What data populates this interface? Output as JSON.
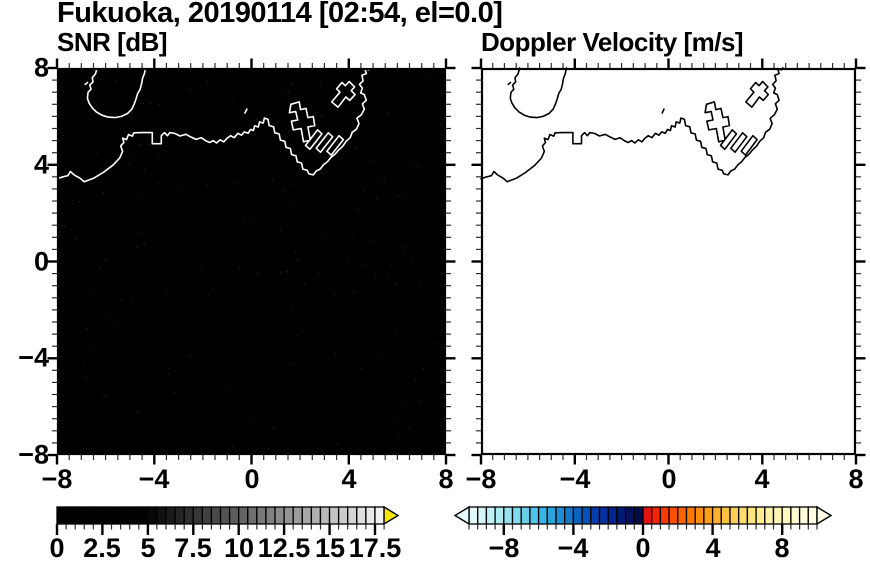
{
  "header": {
    "title": "Fukuoka, 20190114 [02:54, el=0.0]"
  },
  "panels": [
    {
      "key": "snr",
      "subtitle": "SNR [dB]",
      "background": "#000000",
      "coast_color": "#ffffff",
      "show_y_labels": true,
      "speckle_noise": true
    },
    {
      "key": "doppler",
      "subtitle": "Doppler Velocity [m/s]",
      "background": "#ffffff",
      "coast_color": "#000000",
      "show_y_labels": false,
      "speckle_noise": false
    }
  ],
  "axes": {
    "xlim": [
      -8,
      8
    ],
    "ylim": [
      -8,
      8
    ],
    "x_tick_values": [
      -8,
      -4,
      0,
      4,
      8
    ],
    "x_tick_labels": [
      "−8",
      "−4",
      "0",
      "4",
      "8"
    ],
    "y_tick_values": [
      8,
      4,
      0,
      -4,
      -8
    ],
    "y_tick_labels": [
      "8",
      "4",
      "0",
      "−4",
      "−8"
    ],
    "minor_step": 0.5,
    "major_step": 4
  },
  "chart_data": [
    {
      "type": "heatmap",
      "panel": "snr",
      "title": "SNR [dB]",
      "xlim": [
        -8,
        8
      ],
      "ylim": [
        -8,
        8
      ],
      "x_ticks": [
        -8,
        -4,
        0,
        4,
        8
      ],
      "y_ticks": [
        8,
        4,
        0,
        -4,
        -8
      ],
      "minor_tick_step": 0.5,
      "field_summary": "uniform low SNR (~0 dB, below the 5 dB gray threshold) rendered solid black with sparse faint speckle noise; Hakata Bay coastline overlaid in white",
      "colorbar": {
        "min": 0,
        "max": 18,
        "cell_step": 0.5,
        "tick_values": [
          0,
          2.5,
          5,
          7.5,
          10,
          12.5,
          15,
          17.5
        ],
        "tick_labels": [
          "0",
          "2.5",
          "5",
          "7.5",
          "10",
          "12.5",
          "15",
          "17.5"
        ],
        "minor_tick_step": 0.5,
        "over_arrow_color": "#f2e800",
        "under_arrow_color": null,
        "colors": [
          "#000000",
          "#000000",
          "#000000",
          "#000000",
          "#000000",
          "#000000",
          "#000000",
          "#000000",
          "#000000",
          "#000000",
          "#080808",
          "#111111",
          "#1b1b1b",
          "#242424",
          "#2d2d2d",
          "#373737",
          "#404040",
          "#494949",
          "#535353",
          "#5c5c5c",
          "#656565",
          "#6f6f6f",
          "#787878",
          "#818181",
          "#8b8b8b",
          "#949494",
          "#9d9d9d",
          "#a7a7a7",
          "#b0b0b0",
          "#b9b9b9",
          "#c3c3c3",
          "#cccccc",
          "#d5d5d5",
          "#dfdfdf",
          "#e8e8e8",
          "#f1f1f1"
        ]
      }
    },
    {
      "type": "heatmap",
      "panel": "doppler",
      "title": "Doppler Velocity [m/s]",
      "xlim": [
        -8,
        8
      ],
      "ylim": [
        -8,
        8
      ],
      "x_ticks": [
        -8,
        -4,
        0,
        4,
        8
      ],
      "y_ticks": [
        8,
        4,
        0,
        -4,
        -8
      ],
      "minor_tick_step": 0.5,
      "field_summary": "no Doppler velocity echoes displayed (blank white field); Hakata Bay coastline overlaid in black",
      "colorbar": {
        "min": -10,
        "max": 10,
        "cell_step": 0.5,
        "tick_values": [
          -8,
          -4,
          0,
          4,
          8
        ],
        "tick_labels": [
          "−8",
          "−4",
          "0",
          "4",
          "8"
        ],
        "minor_tick_step": 0.5,
        "under_arrow_color": "#e6fbfb",
        "over_arrow_color": "#fffde8",
        "colors": [
          "#e2fafa",
          "#d2f5f7",
          "#c0f0f5",
          "#aceaf2",
          "#96e2f0",
          "#7fd9ed",
          "#68cfea",
          "#50c3e7",
          "#3ab5e3",
          "#2aa4dd",
          "#1c90d6",
          "#1279cd",
          "#0a62c3",
          "#0650b8",
          "#043eac",
          "#03309e",
          "#02238c",
          "#021a76",
          "#02125e",
          "#020c46",
          "#e21212",
          "#f22408",
          "#fb3a00",
          "#ff5000",
          "#ff6400",
          "#ff7800",
          "#ff8c0a",
          "#ff9e1c",
          "#ffb030",
          "#ffc046",
          "#ffcf5a",
          "#ffdc6e",
          "#ffe581",
          "#ffec93",
          "#fff2a4",
          "#fff6b3",
          "#fff9c2",
          "#fffbce",
          "#fffcd9",
          "#fffde2"
        ]
      }
    }
  ],
  "coastline": {
    "main": [
      [
        -8,
        3.42
      ],
      [
        -7.75,
        3.5
      ],
      [
        -7.55,
        3.55
      ],
      [
        -7.45,
        3.72
      ],
      [
        -7.28,
        3.57
      ],
      [
        -7.08,
        3.46
      ],
      [
        -6.88,
        3.3
      ],
      [
        -6.5,
        3.44
      ],
      [
        -6.1,
        3.68
      ],
      [
        -5.7,
        3.98
      ],
      [
        -5.42,
        4.28
      ],
      [
        -5.3,
        4.55
      ],
      [
        -5.38,
        4.78
      ],
      [
        -5.25,
        4.92
      ],
      [
        -5.3,
        5.1
      ],
      [
        -5.14,
        5.04
      ],
      [
        -5.06,
        5.25
      ],
      [
        -4.9,
        5.18
      ],
      [
        -4.84,
        5.32
      ],
      [
        -4.5,
        5.33
      ],
      [
        -4.08,
        5.33
      ],
      [
        -4.08,
        4.87
      ],
      [
        -3.71,
        4.87
      ],
      [
        -3.71,
        5.2
      ],
      [
        -3.58,
        5.33
      ],
      [
        -3.46,
        5.2
      ],
      [
        -3.36,
        5.33
      ],
      [
        -3.15,
        5.29
      ],
      [
        -2.94,
        5.19
      ],
      [
        -2.7,
        5.26
      ],
      [
        -2.5,
        5.15
      ],
      [
        -2.28,
        5.05
      ],
      [
        -2.07,
        5.12
      ],
      [
        -1.89,
        5.0
      ],
      [
        -1.72,
        4.92
      ],
      [
        -1.57,
        5.0
      ],
      [
        -1.44,
        4.9
      ],
      [
        -1.29,
        5.03
      ],
      [
        -1.14,
        4.95
      ],
      [
        -1.0,
        5.1
      ],
      [
        -0.86,
        5.2
      ],
      [
        -0.71,
        5.12
      ],
      [
        -0.56,
        5.3
      ],
      [
        -0.41,
        5.22
      ],
      [
        -0.29,
        5.36
      ],
      [
        -0.14,
        5.3
      ],
      [
        -0.04,
        5.46
      ],
      [
        0.08,
        5.41
      ],
      [
        0.13,
        5.61
      ],
      [
        0.28,
        5.56
      ],
      [
        0.33,
        5.77
      ],
      [
        0.48,
        5.72
      ],
      [
        0.53,
        5.93
      ],
      [
        0.68,
        5.88
      ],
      [
        0.73,
        5.62
      ],
      [
        0.91,
        5.57
      ],
      [
        0.96,
        5.32
      ],
      [
        1.14,
        5.27
      ],
      [
        1.19,
        5.02
      ],
      [
        1.37,
        4.97
      ],
      [
        1.42,
        4.72
      ],
      [
        1.6,
        4.67
      ],
      [
        1.65,
        4.42
      ],
      [
        1.83,
        4.37
      ],
      [
        1.88,
        4.12
      ],
      [
        2.06,
        4.07
      ],
      [
        2.11,
        3.82
      ],
      [
        2.29,
        3.77
      ],
      [
        2.36,
        3.62
      ],
      [
        2.54,
        3.58
      ],
      [
        2.66,
        3.74
      ],
      [
        2.82,
        3.82
      ],
      [
        2.96,
        4.0
      ],
      [
        3.12,
        4.12
      ],
      [
        3.26,
        4.3
      ],
      [
        3.44,
        4.44
      ],
      [
        3.59,
        4.62
      ],
      [
        3.76,
        4.77
      ],
      [
        3.89,
        4.97
      ],
      [
        4.06,
        5.12
      ],
      [
        4.14,
        5.34
      ],
      [
        4.32,
        5.47
      ],
      [
        4.42,
        5.7
      ],
      [
        4.34,
        5.92
      ],
      [
        4.52,
        6.07
      ],
      [
        4.64,
        6.3
      ],
      [
        4.56,
        6.52
      ],
      [
        4.72,
        6.67
      ],
      [
        4.64,
        6.9
      ],
      [
        4.49,
        6.97
      ],
      [
        4.56,
        7.17
      ],
      [
        4.44,
        7.32
      ],
      [
        4.59,
        7.47
      ],
      [
        4.54,
        7.7
      ],
      [
        4.72,
        7.77
      ],
      [
        4.66,
        7.97
      ],
      [
        4.82,
        7.92
      ],
      [
        4.88,
        8.0
      ]
    ],
    "island": [
      [
        -6.35,
        8
      ],
      [
        -6.42,
        7.75
      ],
      [
        -6.55,
        7.6
      ],
      [
        -6.52,
        7.42
      ],
      [
        -6.65,
        7.3
      ],
      [
        -6.6,
        7.12
      ],
      [
        -6.72,
        7.0
      ],
      [
        -6.75,
        6.75
      ],
      [
        -6.68,
        6.55
      ],
      [
        -6.55,
        6.35
      ],
      [
        -6.38,
        6.18
      ],
      [
        -6.15,
        6.05
      ],
      [
        -5.9,
        5.97
      ],
      [
        -5.62,
        5.95
      ],
      [
        -5.35,
        6.0
      ],
      [
        -5.1,
        6.12
      ],
      [
        -4.92,
        6.3
      ],
      [
        -4.82,
        6.52
      ],
      [
        -4.75,
        6.72
      ],
      [
        -4.68,
        6.95
      ],
      [
        -4.58,
        7.12
      ],
      [
        -4.52,
        7.35
      ],
      [
        -4.48,
        7.58
      ],
      [
        -4.4,
        7.78
      ],
      [
        -4.36,
        8
      ]
    ],
    "islet": [
      [
        -6.84,
        7.32
      ],
      [
        -6.74,
        7.4
      ]
    ],
    "small_mark": [
      [
        -0.27,
        6.14
      ],
      [
        -0.19,
        6.3
      ]
    ],
    "piers": [
      [
        [
          1.62,
          6.5
        ],
        [
          1.96,
          6.6
        ],
        [
          2.02,
          6.28
        ],
        [
          2.24,
          6.33
        ],
        [
          2.32,
          5.95
        ],
        [
          2.54,
          5.99
        ],
        [
          2.6,
          5.62
        ],
        [
          2.32,
          5.56
        ],
        [
          2.42,
          5.02
        ],
        [
          2.14,
          4.95
        ],
        [
          2.04,
          5.5
        ],
        [
          1.72,
          5.44
        ],
        [
          1.64,
          5.8
        ],
        [
          1.9,
          5.85
        ],
        [
          1.82,
          6.2
        ],
        [
          1.56,
          6.15
        ]
      ],
      [
        [
          2.4,
          4.64
        ],
        [
          2.22,
          4.8
        ],
        [
          2.72,
          5.44
        ],
        [
          2.9,
          5.28
        ]
      ],
      [
        [
          2.84,
          4.52
        ],
        [
          2.66,
          4.68
        ],
        [
          3.16,
          5.32
        ],
        [
          3.34,
          5.16
        ]
      ],
      [
        [
          3.28,
          4.4
        ],
        [
          3.1,
          4.56
        ],
        [
          3.6,
          5.2
        ],
        [
          3.78,
          5.04
        ]
      ],
      [
        [
          3.3,
          6.6
        ],
        [
          3.64,
          7.0
        ],
        [
          3.5,
          7.14
        ],
        [
          3.72,
          7.4
        ],
        [
          3.86,
          7.27
        ],
        [
          4.02,
          7.44
        ],
        [
          4.24,
          7.22
        ],
        [
          4.1,
          7.06
        ],
        [
          4.26,
          6.9
        ],
        [
          4.04,
          6.66
        ],
        [
          3.88,
          6.8
        ],
        [
          3.56,
          6.38
        ]
      ]
    ]
  },
  "style_colors": {
    "frame": "#000000",
    "tick_major": "#000000",
    "tick_minor": "#2e2e2e",
    "speckle": "#242424"
  }
}
